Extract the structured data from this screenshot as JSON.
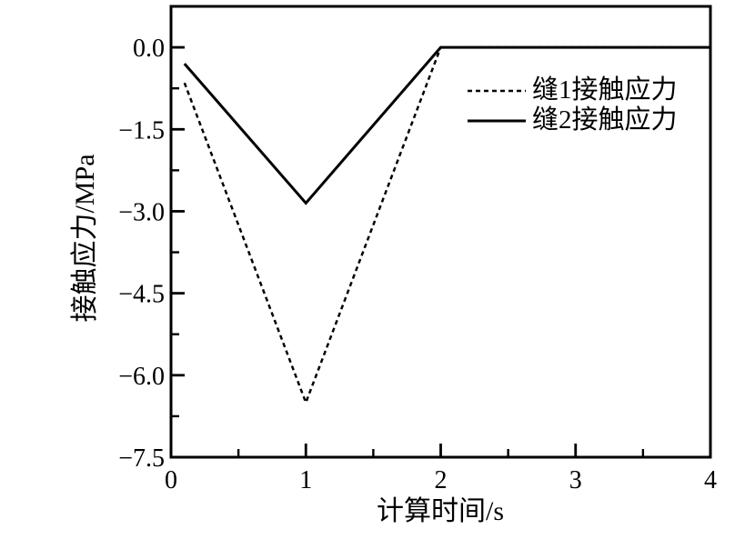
{
  "chart_data": {
    "type": "line",
    "title": "",
    "xlabel": "计算时间/s",
    "ylabel": "接触应力/MPa",
    "xlim": [
      0,
      4
    ],
    "ylim": [
      -7.5,
      0.75
    ],
    "grid": false,
    "frame": "full-box",
    "legend_position": "inside-upper-right",
    "x_major_ticks": [
      0,
      1,
      2,
      3,
      4
    ],
    "x_tick_labels": [
      "0",
      "1",
      "2",
      "3",
      "4"
    ],
    "x_minor_ticks": [
      0.5,
      1.5,
      2.5,
      3.5
    ],
    "y_major_ticks": [
      0,
      -1.5,
      -3,
      -4.5,
      -6,
      -7.5
    ],
    "y_tick_labels": [
      "0.0",
      "−1.5",
      "−3.0",
      "−4.5",
      "−6.0",
      "−7.5"
    ],
    "y_minor_ticks": [
      -0.75,
      -2.25,
      -3.75,
      -5.25,
      -6.75
    ],
    "series": [
      {
        "name": "缝1接触应力",
        "line_style": "dashed",
        "color": "#000000",
        "points": [
          [
            0.1,
            -0.65
          ],
          [
            1,
            -6.5
          ],
          [
            2,
            0
          ],
          [
            4,
            0
          ]
        ]
      },
      {
        "name": "缝2接触应力",
        "line_style": "solid",
        "color": "#000000",
        "points": [
          [
            0.1,
            -0.3
          ],
          [
            1,
            -2.85
          ],
          [
            2,
            0
          ],
          [
            4,
            0
          ]
        ]
      }
    ]
  },
  "colors": {
    "foreground": "#000000",
    "background": "#ffffff"
  }
}
